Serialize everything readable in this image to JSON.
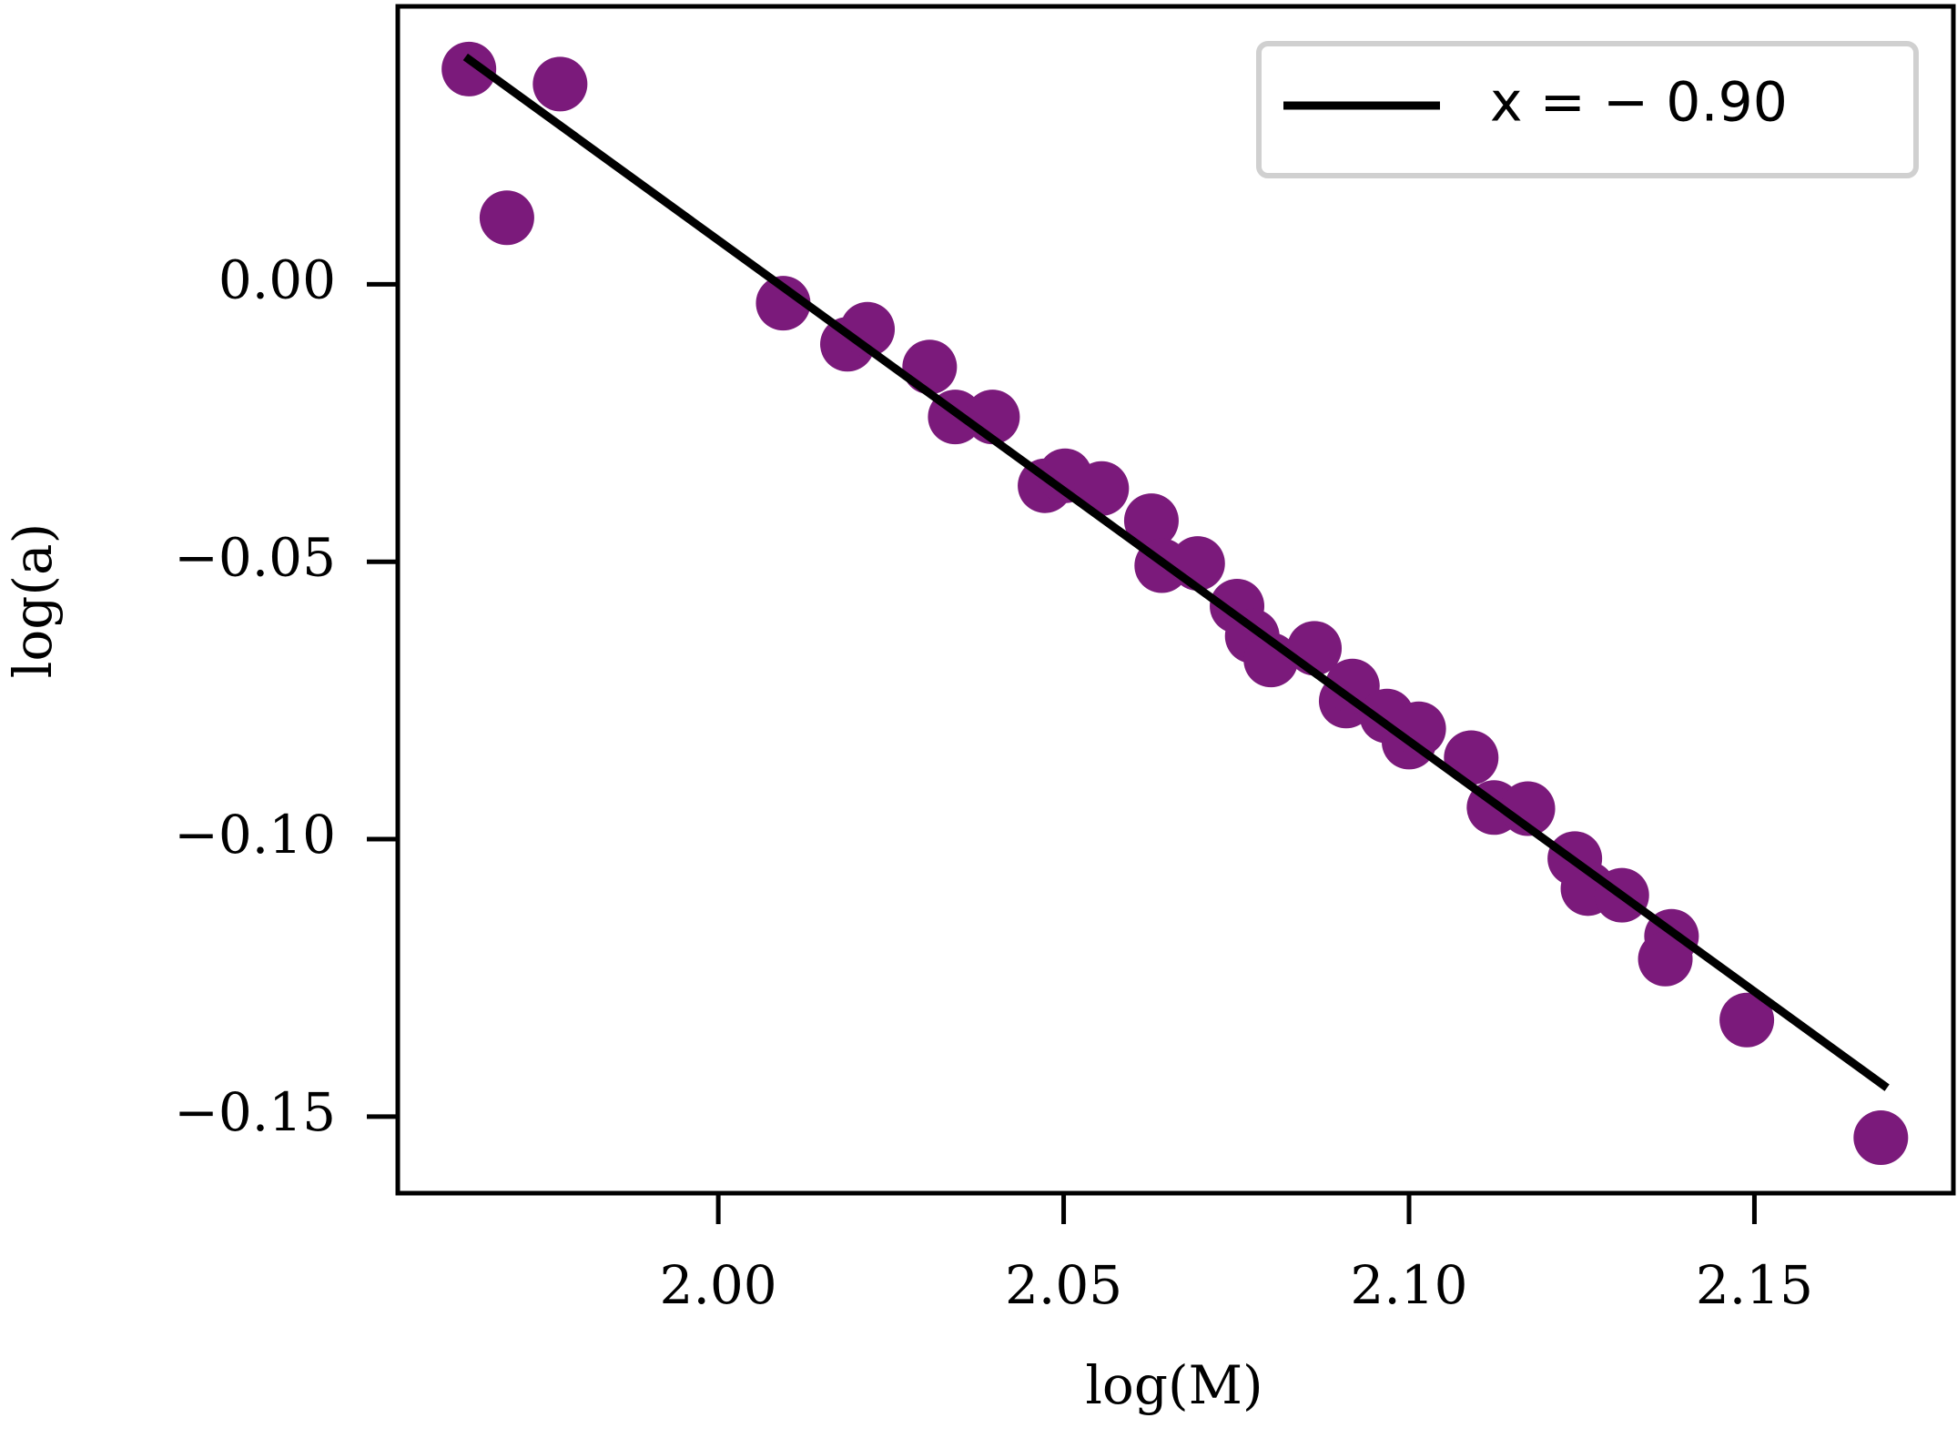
{
  "chart_data": {
    "type": "scatter",
    "xlabel": "log(M)",
    "ylabel": "log(a)",
    "xlim": [
      1.9536,
      2.1788
    ],
    "ylim": [
      -0.1638,
      0.0501
    ],
    "xticks": [
      {
        "value": 2.0,
        "label": "2.00"
      },
      2.05,
      {
        "value": 2.1,
        "label": "2.10"
      },
      2.15
    ],
    "yticks": [
      {
        "value": 0,
        "label": "0.00"
      },
      {
        "value": -0.05,
        "label": "−0.05"
      },
      {
        "value": -0.1,
        "label": "−0.10"
      },
      {
        "value": -0.15,
        "label": "−0.15"
      }
    ],
    "legend": "upper right",
    "points": {
      "color": "#7b1a7b",
      "x": [
        1.9639,
        1.9771,
        1.9694,
        2.0094,
        2.0187,
        2.0216,
        2.0306,
        2.0343,
        2.0397,
        2.0473,
        2.0502,
        2.0555,
        2.0627,
        2.0642,
        2.0694,
        2.0751,
        2.0773,
        2.08,
        2.0863,
        2.0909,
        2.0918,
        2.0968,
        2.1,
        2.1014,
        2.109,
        2.1123,
        2.1172,
        2.124,
        2.1259,
        2.1308,
        2.138,
        2.1371,
        2.1489,
        2.1683
      ],
      "y": [
        0.0388,
        0.0361,
        0.012,
        -0.0034,
        -0.0108,
        -0.0081,
        -0.0149,
        -0.0239,
        -0.0239,
        -0.0363,
        -0.0345,
        -0.0368,
        -0.0426,
        -0.0507,
        -0.0503,
        -0.058,
        -0.0634,
        -0.0677,
        -0.0656,
        -0.0751,
        -0.0724,
        -0.0778,
        -0.0825,
        -0.0801,
        -0.0853,
        -0.0943,
        -0.0945,
        -0.1035,
        -0.1089,
        -0.1101,
        -0.1175,
        -0.1216,
        -0.1326,
        -0.1538
      ]
    },
    "fit": {
      "name": "x = − 0.90",
      "color": "#000000",
      "x": [
        1.9634,
        2.1692
      ],
      "y": [
        0.041,
        -0.1448
      ]
    }
  }
}
